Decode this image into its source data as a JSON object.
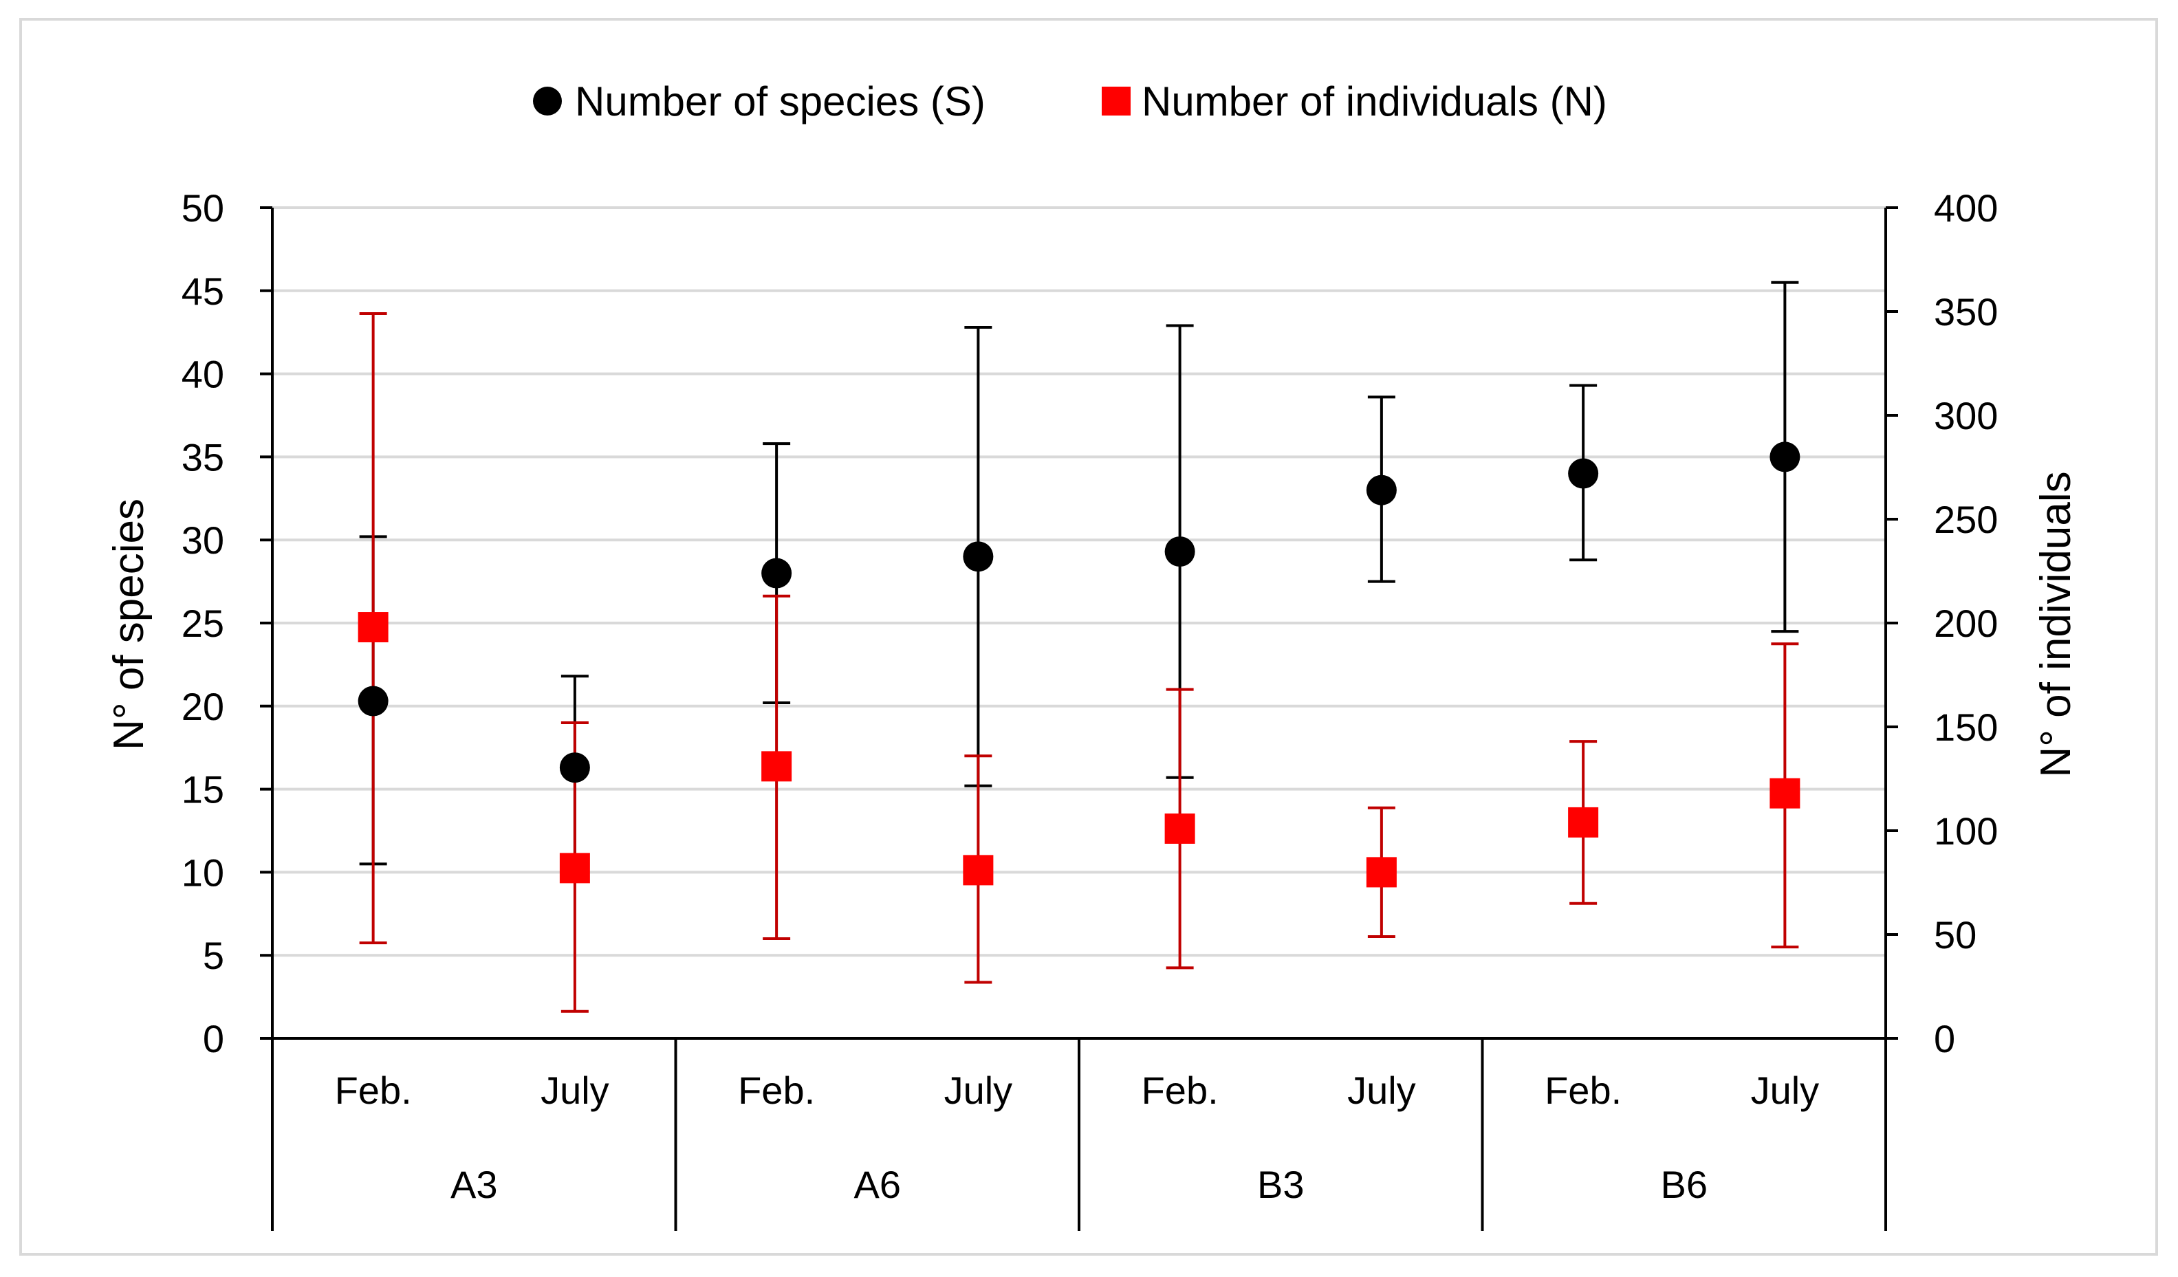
{
  "chart_data": {
    "type": "scatter",
    "legend_position": "top",
    "categories": [
      "Feb.",
      "July",
      "Feb.",
      "July",
      "Feb.",
      "July",
      "Feb.",
      "July"
    ],
    "groups": [
      "A3",
      "A6",
      "B3",
      "B6"
    ],
    "left_axis": {
      "label": "N° of species",
      "ylim": [
        0,
        50
      ],
      "ticks": [
        0,
        5,
        10,
        15,
        20,
        25,
        30,
        35,
        40,
        45,
        50
      ]
    },
    "right_axis": {
      "label": "N° of individuals",
      "ylim": [
        0,
        400
      ],
      "ticks": [
        0,
        50,
        100,
        150,
        200,
        250,
        300,
        350,
        400
      ]
    },
    "grid": true,
    "series": [
      {
        "name": "Number of species (S)",
        "axis": "left",
        "marker": "circle",
        "color": "#000000",
        "values": [
          20.3,
          16.3,
          28.0,
          29.0,
          29.3,
          33.0,
          34.0,
          35.0
        ],
        "err_upper": [
          30.2,
          21.8,
          35.8,
          42.8,
          42.9,
          38.6,
          39.3,
          45.5
        ],
        "err_lower": [
          10.5,
          10.0,
          20.2,
          15.2,
          15.7,
          27.5,
          28.8,
          24.5
        ]
      },
      {
        "name": "Number of individuals (N)",
        "axis": "right",
        "marker": "square",
        "color": "#ff0000",
        "errorbar_color": "#c00000",
        "values": [
          198,
          82,
          131,
          81,
          101,
          80,
          104,
          118
        ],
        "err_upper": [
          349,
          152,
          213,
          136,
          168,
          111,
          143,
          190
        ],
        "err_lower": [
          46,
          13,
          48,
          27,
          34,
          49,
          65,
          44
        ]
      }
    ]
  }
}
